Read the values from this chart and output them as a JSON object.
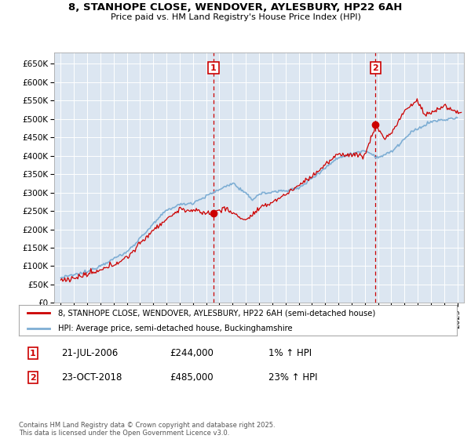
{
  "title": "8, STANHOPE CLOSE, WENDOVER, AYLESBURY, HP22 6AH",
  "subtitle": "Price paid vs. HM Land Registry's House Price Index (HPI)",
  "legend_line1": "8, STANHOPE CLOSE, WENDOVER, AYLESBURY, HP22 6AH (semi-detached house)",
  "legend_line2": "HPI: Average price, semi-detached house, Buckinghamshire",
  "annotation1": {
    "label": "1",
    "date": "21-JUL-2006",
    "price": "£244,000",
    "hpi": "1% ↑ HPI",
    "x_year": 2006.55
  },
  "annotation2": {
    "label": "2",
    "date": "23-OCT-2018",
    "price": "£485,000",
    "hpi": "23% ↑ HPI",
    "x_year": 2018.81
  },
  "footnote": "Contains HM Land Registry data © Crown copyright and database right 2025.\nThis data is licensed under the Open Government Licence v3.0.",
  "ylim": [
    0,
    680000
  ],
  "yticks": [
    0,
    50000,
    100000,
    150000,
    200000,
    250000,
    300000,
    350000,
    400000,
    450000,
    500000,
    550000,
    600000,
    650000
  ],
  "ytick_labels": [
    "£0",
    "£50K",
    "£100K",
    "£150K",
    "£200K",
    "£250K",
    "£300K",
    "£350K",
    "£400K",
    "£450K",
    "£500K",
    "£550K",
    "£600K",
    "£650K"
  ],
  "xlim": [
    1994.5,
    2025.5
  ],
  "xticks": [
    1995,
    1996,
    1997,
    1998,
    1999,
    2000,
    2001,
    2002,
    2003,
    2004,
    2005,
    2006,
    2007,
    2008,
    2009,
    2010,
    2011,
    2012,
    2013,
    2014,
    2015,
    2016,
    2017,
    2018,
    2019,
    2020,
    2021,
    2022,
    2023,
    2024,
    2025
  ],
  "plot_bg_color": "#dce6f1",
  "line_color_red": "#cc0000",
  "line_color_blue": "#7eaed4",
  "vline_color": "#cc0000",
  "box_color": "#cc0000",
  "sale1_x": 2006.55,
  "sale1_y": 244000,
  "sale2_x": 2018.81,
  "sale2_y": 485000
}
